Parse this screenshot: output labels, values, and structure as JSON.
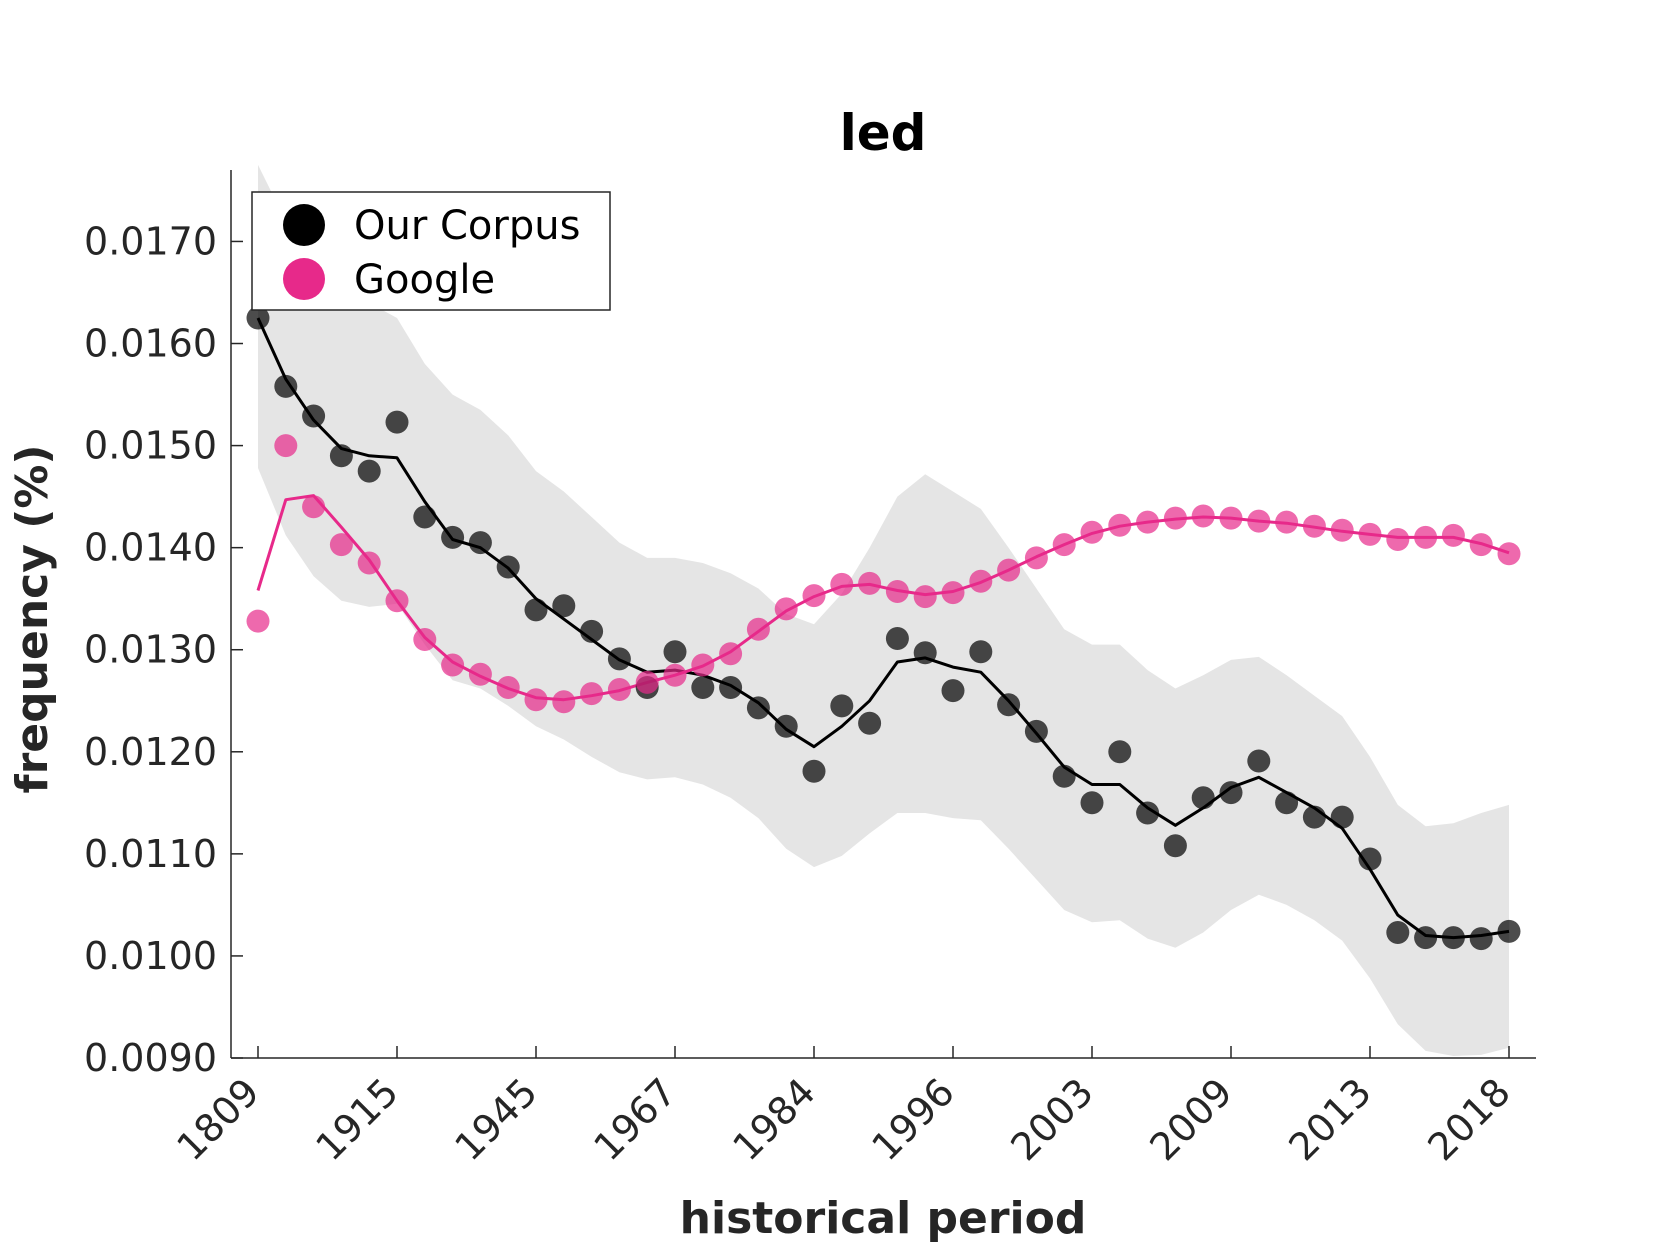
{
  "chart_data": {
    "type": "scatter",
    "title": "led",
    "xlabel": "historical period",
    "ylabel": "frequency (%)",
    "ylim": [
      0.009,
      0.0177
    ],
    "yticks": [
      0.009,
      0.01,
      0.011,
      0.012,
      0.013,
      0.014,
      0.015,
      0.016,
      0.017
    ],
    "ytick_labels": [
      "0.0090",
      "0.0100",
      "0.0110",
      "0.0120",
      "0.0130",
      "0.0140",
      "0.0150",
      "0.0160",
      "0.0170"
    ],
    "xtick_positions": [
      0,
      5,
      10,
      15,
      20,
      25,
      30,
      35,
      40,
      45
    ],
    "xtick_labels": [
      "1809",
      "1915",
      "1945",
      "1967",
      "1984",
      "1996",
      "2003",
      "2009",
      "2013",
      "2018"
    ],
    "legend_position": "top-left",
    "grid": false,
    "colors": {
      "corpus": "#000000",
      "google": "#e7298a",
      "band": "#e5e5e5"
    },
    "series": [
      {
        "name": "Our Corpus",
        "points": [
          0.01625,
          0.01558,
          0.01529,
          0.0149,
          0.01475,
          0.01523,
          0.0143,
          0.0141,
          0.01405,
          0.01381,
          0.01339,
          0.01343,
          0.01318,
          0.01291,
          0.01263,
          0.01298,
          0.01263,
          0.01263,
          0.01243,
          0.01225,
          0.01181,
          0.01245,
          0.01228,
          0.01311,
          0.01297,
          0.0126,
          0.01298,
          0.01246,
          0.0122,
          0.01176,
          0.0115,
          0.012,
          0.0114,
          0.01108,
          0.01155,
          0.0116,
          0.01191,
          0.0115,
          0.01136,
          0.01136,
          0.01095,
          0.01023,
          0.01018,
          0.01018,
          0.01017,
          0.01024
        ],
        "trend": [
          0.01625,
          0.01565,
          0.01525,
          0.01497,
          0.0149,
          0.01488,
          0.01445,
          0.01408,
          0.014,
          0.0138,
          0.0135,
          0.0133,
          0.0131,
          0.0129,
          0.01278,
          0.0128,
          0.01275,
          0.01265,
          0.01248,
          0.01222,
          0.01205,
          0.01225,
          0.0125,
          0.01288,
          0.01292,
          0.01283,
          0.01278,
          0.0125,
          0.01218,
          0.01185,
          0.01168,
          0.01168,
          0.01145,
          0.01128,
          0.01145,
          0.01165,
          0.01175,
          0.0116,
          0.01145,
          0.01125,
          0.01085,
          0.0104,
          0.0102,
          0.01018,
          0.0102,
          0.01024
        ],
        "band_upper": [
          0.01775,
          0.0172,
          0.01685,
          0.01655,
          0.0164,
          0.01625,
          0.0158,
          0.0155,
          0.01535,
          0.0151,
          0.01475,
          0.01455,
          0.0143,
          0.01405,
          0.0139,
          0.0139,
          0.01385,
          0.01375,
          0.0136,
          0.01335,
          0.01325,
          0.01355,
          0.014,
          0.0145,
          0.01472,
          0.01455,
          0.01438,
          0.014,
          0.0136,
          0.0132,
          0.01305,
          0.01305,
          0.0128,
          0.01262,
          0.01275,
          0.0129,
          0.01293,
          0.01275,
          0.01255,
          0.01235,
          0.01195,
          0.01148,
          0.01127,
          0.0113,
          0.0114,
          0.01148
        ],
        "band_lower": [
          0.01478,
          0.01412,
          0.01372,
          0.01348,
          0.01342,
          0.01345,
          0.01305,
          0.0127,
          0.01262,
          0.01245,
          0.01225,
          0.01212,
          0.01195,
          0.0118,
          0.01173,
          0.01175,
          0.01168,
          0.01155,
          0.01135,
          0.01105,
          0.01087,
          0.01098,
          0.0112,
          0.0114,
          0.0114,
          0.01135,
          0.01133,
          0.01105,
          0.01075,
          0.01045,
          0.01033,
          0.01035,
          0.01017,
          0.01008,
          0.01023,
          0.01045,
          0.0106,
          0.0105,
          0.01035,
          0.01015,
          0.00978,
          0.00933,
          0.00907,
          0.00902,
          0.00903,
          0.0091
        ]
      },
      {
        "name": "Google",
        "points": [
          0.01328,
          0.015,
          0.0144,
          0.01403,
          0.01385,
          0.01348,
          0.0131,
          0.01285,
          0.01276,
          0.01263,
          0.01251,
          0.01249,
          0.01257,
          0.01261,
          0.01268,
          0.01275,
          0.01285,
          0.01296,
          0.0132,
          0.0134,
          0.01353,
          0.01364,
          0.01365,
          0.01357,
          0.01352,
          0.01356,
          0.01367,
          0.01378,
          0.0139,
          0.01403,
          0.01415,
          0.01422,
          0.01425,
          0.01429,
          0.01431,
          0.01429,
          0.01426,
          0.01425,
          0.01421,
          0.01417,
          0.01413,
          0.01408,
          0.0141,
          0.01412,
          0.01403,
          0.01394
        ],
        "trend": [
          0.01358,
          0.01447,
          0.01451,
          0.0142,
          0.01388,
          0.01348,
          0.01312,
          0.01288,
          0.01274,
          0.01262,
          0.01253,
          0.01251,
          0.01255,
          0.0126,
          0.01268,
          0.01275,
          0.01284,
          0.01298,
          0.01318,
          0.01338,
          0.01352,
          0.01362,
          0.01364,
          0.01358,
          0.01354,
          0.01357,
          0.01366,
          0.01378,
          0.01391,
          0.01403,
          0.01414,
          0.01421,
          0.01425,
          0.01428,
          0.0143,
          0.01429,
          0.01426,
          0.01424,
          0.0142,
          0.01416,
          0.01413,
          0.0141,
          0.0141,
          0.0141,
          0.01404,
          0.01395
        ]
      }
    ]
  }
}
